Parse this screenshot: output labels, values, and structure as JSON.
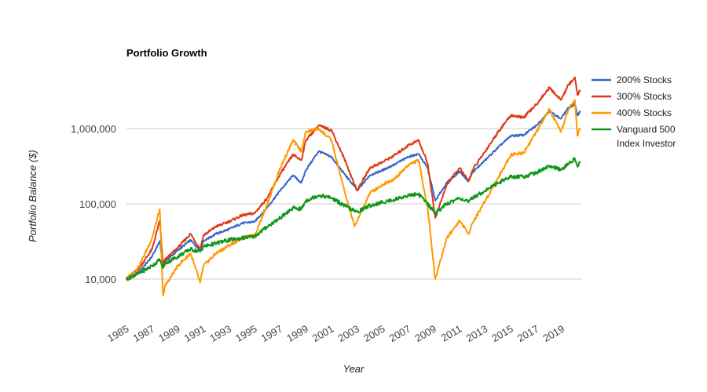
{
  "chart_data": {
    "type": "line",
    "title": "Portfolio Growth",
    "xlabel": "Year",
    "ylabel": "Portfolio Balance ($)",
    "y_scale": "log",
    "ylim": [
      10000,
      5000000
    ],
    "xlim": [
      1985,
      2020.5
    ],
    "grid": true,
    "legend_position": "right",
    "y_ticks": [
      {
        "value": 10000,
        "label": "10,000"
      },
      {
        "value": 100000,
        "label": "100,000"
      },
      {
        "value": 1000000,
        "label": "1,000,000"
      }
    ],
    "x_ticks": [
      {
        "value": 1985,
        "label": "1985"
      },
      {
        "value": 1987,
        "label": "1987"
      },
      {
        "value": 1989,
        "label": "1989"
      },
      {
        "value": 1991,
        "label": "1991"
      },
      {
        "value": 1993,
        "label": "1993"
      },
      {
        "value": 1995,
        "label": "1995"
      },
      {
        "value": 1997,
        "label": "1997"
      },
      {
        "value": 1999,
        "label": "1999"
      },
      {
        "value": 2001,
        "label": "2001"
      },
      {
        "value": 2003,
        "label": "2003"
      },
      {
        "value": 2005,
        "label": "2005"
      },
      {
        "value": 2007,
        "label": "2007"
      },
      {
        "value": 2009,
        "label": "2009"
      },
      {
        "value": 2011,
        "label": "2011"
      },
      {
        "value": 2013,
        "label": "2013"
      },
      {
        "value": 2015,
        "label": "2015"
      },
      {
        "value": 2017,
        "label": "2017"
      },
      {
        "value": 2019,
        "label": "2019"
      }
    ],
    "series": [
      {
        "name": "200% Stocks",
        "color": "#3366cc",
        "points": [
          [
            1985,
            10000
          ],
          [
            1986,
            12500
          ],
          [
            1987,
            20000
          ],
          [
            1987.6,
            32000
          ],
          [
            1987.85,
            15000
          ],
          [
            1988,
            17000
          ],
          [
            1989,
            24000
          ],
          [
            1990,
            33000
          ],
          [
            1990.75,
            24000
          ],
          [
            1991,
            32000
          ],
          [
            1992,
            40000
          ],
          [
            1993,
            46000
          ],
          [
            1994,
            55000
          ],
          [
            1995,
            58000
          ],
          [
            1996,
            90000
          ],
          [
            1997,
            150000
          ],
          [
            1998,
            240000
          ],
          [
            1998.65,
            190000
          ],
          [
            1999,
            280000
          ],
          [
            2000,
            500000
          ],
          [
            2001,
            420000
          ],
          [
            2002,
            250000
          ],
          [
            2002.8,
            170000
          ],
          [
            2003,
            150000
          ],
          [
            2004,
            240000
          ],
          [
            2005,
            280000
          ],
          [
            2006,
            340000
          ],
          [
            2007,
            420000
          ],
          [
            2007.8,
            460000
          ],
          [
            2008.5,
            300000
          ],
          [
            2009.1,
            110000
          ],
          [
            2010,
            190000
          ],
          [
            2011,
            270000
          ],
          [
            2011.7,
            200000
          ],
          [
            2012,
            260000
          ],
          [
            2013,
            380000
          ],
          [
            2014,
            560000
          ],
          [
            2015,
            800000
          ],
          [
            2016,
            820000
          ],
          [
            2017,
            1100000
          ],
          [
            2018,
            1700000
          ],
          [
            2018.9,
            1350000
          ],
          [
            2019.5,
            1900000
          ],
          [
            2020,
            2100000
          ],
          [
            2020.2,
            1500000
          ],
          [
            2020.4,
            1700000
          ]
        ]
      },
      {
        "name": "300% Stocks",
        "color": "#dc3912",
        "points": [
          [
            1985,
            10000
          ],
          [
            1986,
            14000
          ],
          [
            1987,
            25000
          ],
          [
            1987.6,
            60000
          ],
          [
            1987.85,
            16000
          ],
          [
            1988,
            18000
          ],
          [
            1989,
            26000
          ],
          [
            1990,
            40000
          ],
          [
            1990.75,
            25000
          ],
          [
            1991,
            38000
          ],
          [
            1992,
            50000
          ],
          [
            1993,
            58000
          ],
          [
            1994,
            70000
          ],
          [
            1995,
            75000
          ],
          [
            1996,
            120000
          ],
          [
            1997,
            250000
          ],
          [
            1998,
            450000
          ],
          [
            1998.65,
            380000
          ],
          [
            1999,
            700000
          ],
          [
            2000,
            1100000
          ],
          [
            2001,
            950000
          ],
          [
            2002,
            400000
          ],
          [
            2002.8,
            180000
          ],
          [
            2003,
            150000
          ],
          [
            2004,
            300000
          ],
          [
            2005,
            360000
          ],
          [
            2006,
            450000
          ],
          [
            2007,
            600000
          ],
          [
            2007.8,
            700000
          ],
          [
            2008.5,
            350000
          ],
          [
            2009.1,
            65000
          ],
          [
            2010,
            180000
          ],
          [
            2011,
            300000
          ],
          [
            2011.7,
            200000
          ],
          [
            2012,
            280000
          ],
          [
            2013,
            500000
          ],
          [
            2014,
            900000
          ],
          [
            2015,
            1500000
          ],
          [
            2016,
            1400000
          ],
          [
            2017,
            2100000
          ],
          [
            2018,
            3500000
          ],
          [
            2018.9,
            2400000
          ],
          [
            2019.5,
            3800000
          ],
          [
            2020,
            4800000
          ],
          [
            2020.2,
            2800000
          ],
          [
            2020.4,
            3200000
          ]
        ]
      },
      {
        "name": "400% Stocks",
        "color": "#ff9900",
        "points": [
          [
            1985,
            10000
          ],
          [
            1986,
            15000
          ],
          [
            1987,
            35000
          ],
          [
            1987.6,
            85000
          ],
          [
            1987.85,
            6000
          ],
          [
            1988,
            8000
          ],
          [
            1989,
            15000
          ],
          [
            1990,
            22000
          ],
          [
            1990.75,
            9000
          ],
          [
            1991,
            15000
          ],
          [
            1992,
            22000
          ],
          [
            1993,
            28000
          ],
          [
            1994,
            35000
          ],
          [
            1995,
            38000
          ],
          [
            1996,
            100000
          ],
          [
            1997,
            300000
          ],
          [
            1998,
            700000
          ],
          [
            1998.65,
            500000
          ],
          [
            1999,
            900000
          ],
          [
            2000,
            1000000
          ],
          [
            2001,
            700000
          ],
          [
            2002,
            150000
          ],
          [
            2002.8,
            50000
          ],
          [
            2003,
            60000
          ],
          [
            2004,
            140000
          ],
          [
            2005,
            180000
          ],
          [
            2006,
            220000
          ],
          [
            2007,
            330000
          ],
          [
            2007.8,
            380000
          ],
          [
            2008.5,
            90000
          ],
          [
            2009.1,
            10000
          ],
          [
            2010,
            35000
          ],
          [
            2011,
            60000
          ],
          [
            2011.7,
            40000
          ],
          [
            2012,
            55000
          ],
          [
            2013,
            110000
          ],
          [
            2014,
            220000
          ],
          [
            2015,
            450000
          ],
          [
            2016,
            480000
          ],
          [
            2017,
            900000
          ],
          [
            2018,
            1800000
          ],
          [
            2018.9,
            900000
          ],
          [
            2019.5,
            1800000
          ],
          [
            2020,
            2400000
          ],
          [
            2020.2,
            800000
          ],
          [
            2020.4,
            1000000
          ]
        ]
      },
      {
        "name": "Vanguard 500 Index Investor",
        "color": "#109618",
        "points": [
          [
            1985,
            10000
          ],
          [
            1986,
            12000
          ],
          [
            1987,
            15000
          ],
          [
            1987.6,
            18000
          ],
          [
            1987.85,
            14000
          ],
          [
            1988,
            16000
          ],
          [
            1989,
            20000
          ],
          [
            1990,
            25000
          ],
          [
            1990.75,
            23000
          ],
          [
            1991,
            27000
          ],
          [
            1992,
            30000
          ],
          [
            1993,
            33000
          ],
          [
            1994,
            35000
          ],
          [
            1995,
            37000
          ],
          [
            1996,
            50000
          ],
          [
            1997,
            65000
          ],
          [
            1998,
            88000
          ],
          [
            1998.65,
            85000
          ],
          [
            1999,
            110000
          ],
          [
            2000,
            130000
          ],
          [
            2001,
            120000
          ],
          [
            2002,
            95000
          ],
          [
            2002.8,
            80000
          ],
          [
            2003,
            78000
          ],
          [
            2004,
            95000
          ],
          [
            2005,
            105000
          ],
          [
            2006,
            115000
          ],
          [
            2007,
            130000
          ],
          [
            2007.8,
            135000
          ],
          [
            2008.5,
            100000
          ],
          [
            2009.1,
            75000
          ],
          [
            2010,
            100000
          ],
          [
            2011,
            120000
          ],
          [
            2011.7,
            105000
          ],
          [
            2012,
            120000
          ],
          [
            2013,
            150000
          ],
          [
            2014,
            190000
          ],
          [
            2015,
            230000
          ],
          [
            2016,
            230000
          ],
          [
            2017,
            260000
          ],
          [
            2018,
            320000
          ],
          [
            2018.9,
            280000
          ],
          [
            2019.5,
            340000
          ],
          [
            2020,
            400000
          ],
          [
            2020.2,
            310000
          ],
          [
            2020.4,
            360000
          ]
        ]
      }
    ]
  },
  "legend": {
    "items": [
      {
        "line1": "200% Stocks",
        "line2": "",
        "color": "#3366cc"
      },
      {
        "line1": "300% Stocks",
        "line2": "",
        "color": "#dc3912"
      },
      {
        "line1": "400% Stocks",
        "line2": "",
        "color": "#ff9900"
      },
      {
        "line1": "Vanguard 500",
        "line2": "Index Investor",
        "color": "#109618"
      }
    ]
  }
}
